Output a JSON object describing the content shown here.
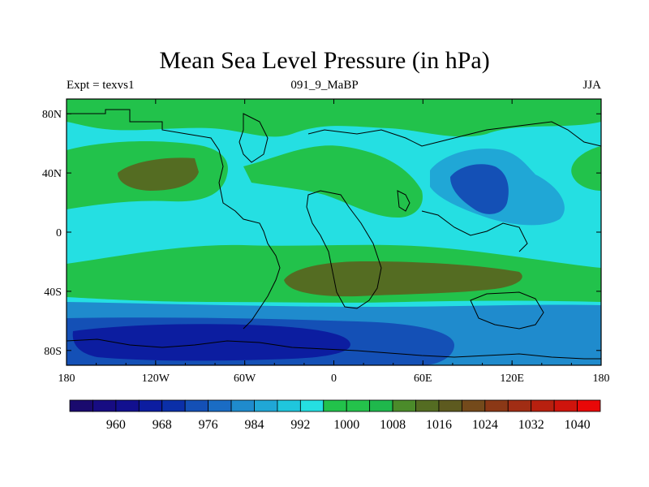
{
  "chart_data": {
    "type": "heatmap",
    "title": "Mean Sea Level Pressure (in hPa)",
    "left_string": "Expt = texvs1",
    "center_string": "091_9_MaBP",
    "right_string": "JJA",
    "x_ticks": [
      "180",
      "120W",
      "60W",
      "0",
      "60E",
      "120E",
      "180"
    ],
    "x_tick_values": [
      -180,
      -120,
      -60,
      0,
      60,
      120,
      180
    ],
    "y_ticks": [
      "80N",
      "40N",
      "0",
      "40S",
      "80S"
    ],
    "y_tick_values": [
      80,
      40,
      0,
      -40,
      -80
    ],
    "xlim": [
      -180,
      180
    ],
    "ylim": [
      -90,
      90
    ],
    "colorbar": {
      "levels": [
        956,
        960,
        964,
        968,
        972,
        976,
        980,
        984,
        988,
        992,
        996,
        1000,
        1004,
        1008,
        1012,
        1016,
        1020,
        1024,
        1028,
        1032,
        1036,
        1040
      ],
      "labels": [
        "960",
        "968",
        "976",
        "984",
        "992",
        "1000",
        "1008",
        "1016",
        "1024",
        "1032",
        "1040"
      ],
      "colors": [
        "#1a0a6e",
        "#170c82",
        "#12108f",
        "#0c1da0",
        "#0b2fa8",
        "#1450b6",
        "#1a6cc4",
        "#1f8bcd",
        "#20a7d6",
        "#1fc6dd",
        "#25dfe2",
        "#22c24b",
        "#24c24b",
        "#1fb84c",
        "#4b8b2a",
        "#546c22",
        "#5d5a1f",
        "#744a1b",
        "#8b3816",
        "#a12d14",
        "#b8200f",
        "#cf140c",
        "#e80808"
      ]
    },
    "regions": [
      {
        "name": "global-background",
        "level": "996-1000"
      },
      {
        "name": "arctic-band",
        "level": "1004-1008"
      },
      {
        "name": "north-pacific-high",
        "level": "1012-1016"
      },
      {
        "name": "asian-low",
        "level": "984-992"
      },
      {
        "name": "southern-subtropical-band",
        "level": "1004-1008"
      },
      {
        "name": "south-atlantic-indian-high",
        "level": "1012-1016"
      },
      {
        "name": "southern-ocean-low",
        "level": "960-984"
      }
    ]
  }
}
